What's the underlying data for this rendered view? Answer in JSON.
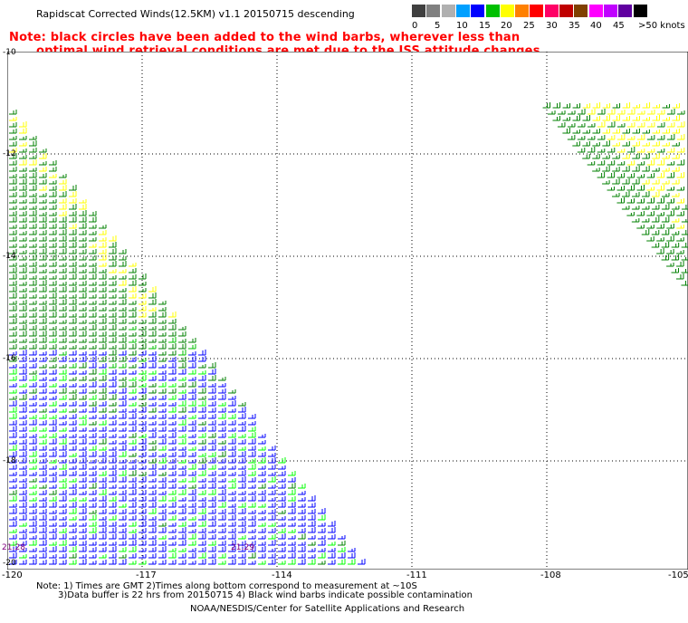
{
  "title": "Rapidscat Corrected Winds(12.5KM) v1.1 20150715 descending",
  "note_line1": "Note: black circles have been added to the wind barbs, wherever less than",
  "note_line2": "optimal wind retrieval conditions are met due to the ISS attitude changes.",
  "legend": {
    "labels": [
      "0",
      "5",
      "10",
      "15",
      "20",
      "25",
      "30",
      "35",
      "40",
      "45",
      ">50 knots"
    ],
    "colors": [
      "#404040",
      "#808080",
      "#b0b0b0",
      "#00a0ff",
      "#0000ff",
      "#00c000",
      "#ffff00",
      "#ff8000",
      "#ff0000",
      "#ff0066",
      "#c00000",
      "#804000",
      "#ff00ff",
      "#c000ff",
      "#6000a0",
      "#000000"
    ]
  },
  "axes": {
    "x_ticks": [
      "-120",
      "-117",
      "-114",
      "-111",
      "-108",
      "-105"
    ],
    "y_ticks": [
      "-10",
      "-12",
      "-14",
      "-16",
      "-18",
      "-20"
    ]
  },
  "time_labels": [
    "21:28",
    "21:29"
  ],
  "footer": {
    "line1": "Note: 1) Times are GMT 2)Times along bottom correspond to measurement at ~10S",
    "line2": "3)Data buffer is 22 hrs from 20150715 4) Black wind barbs indicate possible contamination",
    "credit": "NOAA/NESDIS/Center for Satellite Applications and Research"
  }
}
